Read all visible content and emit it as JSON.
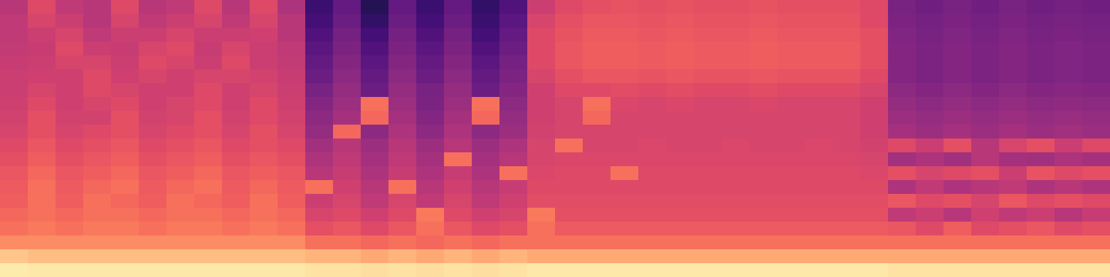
{
  "chart_data": {
    "type": "heatmap",
    "tick_labels": false,
    "color_range": [
      0,
      1
    ],
    "cells": [
      [
        0.5,
        0.6,
        0.52,
        0.5,
        0.6,
        0.5,
        0.52,
        0.6,
        0.5,
        0.6,
        0.48,
        0.2,
        0.3,
        0.15,
        0.3,
        0.2,
        0.3,
        0.18,
        0.25,
        0.55,
        0.6,
        0.62,
        0.63,
        0.62,
        0.63,
        0.62,
        0.62,
        0.63,
        0.62,
        0.62,
        0.62,
        0.6,
        0.35,
        0.33,
        0.35,
        0.33,
        0.35,
        0.33,
        0.34,
        0.33
      ],
      [
        0.52,
        0.58,
        0.55,
        0.5,
        0.58,
        0.52,
        0.55,
        0.58,
        0.52,
        0.58,
        0.5,
        0.22,
        0.32,
        0.18,
        0.32,
        0.22,
        0.32,
        0.2,
        0.28,
        0.58,
        0.62,
        0.64,
        0.64,
        0.63,
        0.64,
        0.63,
        0.63,
        0.64,
        0.63,
        0.63,
        0.63,
        0.6,
        0.36,
        0.34,
        0.36,
        0.34,
        0.36,
        0.34,
        0.35,
        0.34
      ],
      [
        0.52,
        0.55,
        0.58,
        0.52,
        0.55,
        0.55,
        0.58,
        0.55,
        0.55,
        0.56,
        0.5,
        0.25,
        0.34,
        0.22,
        0.34,
        0.25,
        0.34,
        0.22,
        0.3,
        0.6,
        0.63,
        0.65,
        0.65,
        0.64,
        0.65,
        0.64,
        0.64,
        0.65,
        0.64,
        0.64,
        0.64,
        0.62,
        0.37,
        0.35,
        0.37,
        0.35,
        0.37,
        0.35,
        0.36,
        0.35
      ],
      [
        0.53,
        0.54,
        0.6,
        0.55,
        0.54,
        0.58,
        0.6,
        0.54,
        0.58,
        0.55,
        0.52,
        0.28,
        0.36,
        0.25,
        0.36,
        0.28,
        0.36,
        0.25,
        0.32,
        0.6,
        0.64,
        0.66,
        0.66,
        0.65,
        0.66,
        0.65,
        0.65,
        0.66,
        0.65,
        0.65,
        0.65,
        0.62,
        0.38,
        0.36,
        0.38,
        0.36,
        0.38,
        0.36,
        0.37,
        0.36
      ],
      [
        0.54,
        0.55,
        0.58,
        0.58,
        0.55,
        0.6,
        0.58,
        0.55,
        0.6,
        0.55,
        0.53,
        0.3,
        0.38,
        0.28,
        0.38,
        0.3,
        0.38,
        0.28,
        0.34,
        0.6,
        0.64,
        0.66,
        0.66,
        0.65,
        0.66,
        0.65,
        0.65,
        0.66,
        0.65,
        0.65,
        0.65,
        0.62,
        0.38,
        0.36,
        0.38,
        0.36,
        0.38,
        0.36,
        0.37,
        0.36
      ],
      [
        0.55,
        0.56,
        0.56,
        0.6,
        0.56,
        0.58,
        0.56,
        0.58,
        0.58,
        0.57,
        0.54,
        0.32,
        0.4,
        0.3,
        0.4,
        0.32,
        0.4,
        0.3,
        0.36,
        0.58,
        0.62,
        0.64,
        0.64,
        0.63,
        0.64,
        0.63,
        0.63,
        0.64,
        0.63,
        0.63,
        0.63,
        0.6,
        0.38,
        0.36,
        0.38,
        0.36,
        0.38,
        0.36,
        0.37,
        0.36
      ],
      [
        0.55,
        0.58,
        0.56,
        0.6,
        0.58,
        0.56,
        0.56,
        0.6,
        0.56,
        0.58,
        0.55,
        0.35,
        0.42,
        0.32,
        0.42,
        0.35,
        0.42,
        0.32,
        0.38,
        0.56,
        0.6,
        0.6,
        0.61,
        0.6,
        0.61,
        0.6,
        0.6,
        0.61,
        0.6,
        0.6,
        0.6,
        0.58,
        0.4,
        0.38,
        0.4,
        0.38,
        0.4,
        0.38,
        0.39,
        0.38
      ],
      [
        0.56,
        0.6,
        0.56,
        0.58,
        0.6,
        0.56,
        0.58,
        0.6,
        0.56,
        0.6,
        0.56,
        0.38,
        0.44,
        0.7,
        0.44,
        0.36,
        0.44,
        0.7,
        0.4,
        0.56,
        0.58,
        0.7,
        0.59,
        0.58,
        0.59,
        0.58,
        0.58,
        0.59,
        0.58,
        0.58,
        0.58,
        0.56,
        0.42,
        0.4,
        0.42,
        0.4,
        0.42,
        0.4,
        0.41,
        0.4
      ],
      [
        0.57,
        0.62,
        0.57,
        0.57,
        0.62,
        0.57,
        0.58,
        0.62,
        0.57,
        0.6,
        0.57,
        0.4,
        0.46,
        0.68,
        0.46,
        0.38,
        0.46,
        0.68,
        0.42,
        0.56,
        0.58,
        0.68,
        0.58,
        0.58,
        0.58,
        0.58,
        0.58,
        0.58,
        0.58,
        0.58,
        0.58,
        0.56,
        0.44,
        0.42,
        0.44,
        0.42,
        0.44,
        0.42,
        0.43,
        0.42
      ],
      [
        0.58,
        0.62,
        0.58,
        0.6,
        0.62,
        0.58,
        0.6,
        0.62,
        0.58,
        0.62,
        0.58,
        0.42,
        0.68,
        0.4,
        0.48,
        0.4,
        0.48,
        0.4,
        0.44,
        0.57,
        0.58,
        0.58,
        0.58,
        0.58,
        0.58,
        0.58,
        0.58,
        0.58,
        0.58,
        0.58,
        0.58,
        0.56,
        0.46,
        0.44,
        0.46,
        0.44,
        0.46,
        0.44,
        0.45,
        0.44
      ],
      [
        0.6,
        0.64,
        0.6,
        0.62,
        0.64,
        0.6,
        0.62,
        0.64,
        0.6,
        0.62,
        0.6,
        0.45,
        0.5,
        0.44,
        0.5,
        0.44,
        0.5,
        0.44,
        0.48,
        0.58,
        0.7,
        0.58,
        0.58,
        0.59,
        0.58,
        0.58,
        0.59,
        0.58,
        0.58,
        0.59,
        0.58,
        0.57,
        0.6,
        0.55,
        0.62,
        0.5,
        0.58,
        0.62,
        0.55,
        0.6
      ],
      [
        0.62,
        0.66,
        0.62,
        0.64,
        0.66,
        0.62,
        0.64,
        0.66,
        0.62,
        0.64,
        0.62,
        0.48,
        0.52,
        0.46,
        0.52,
        0.46,
        0.7,
        0.46,
        0.5,
        0.58,
        0.59,
        0.59,
        0.59,
        0.59,
        0.59,
        0.59,
        0.59,
        0.59,
        0.59,
        0.59,
        0.59,
        0.58,
        0.45,
        0.48,
        0.45,
        0.5,
        0.46,
        0.45,
        0.48,
        0.46
      ],
      [
        0.64,
        0.68,
        0.64,
        0.66,
        0.68,
        0.64,
        0.66,
        0.68,
        0.64,
        0.66,
        0.64,
        0.5,
        0.54,
        0.48,
        0.54,
        0.48,
        0.54,
        0.48,
        0.7,
        0.59,
        0.6,
        0.6,
        0.7,
        0.6,
        0.6,
        0.6,
        0.6,
        0.6,
        0.6,
        0.6,
        0.6,
        0.59,
        0.62,
        0.58,
        0.6,
        0.62,
        0.55,
        0.63,
        0.6,
        0.62
      ],
      [
        0.65,
        0.7,
        0.65,
        0.68,
        0.7,
        0.65,
        0.68,
        0.7,
        0.65,
        0.68,
        0.65,
        0.7,
        0.56,
        0.5,
        0.7,
        0.5,
        0.56,
        0.5,
        0.54,
        0.6,
        0.6,
        0.6,
        0.6,
        0.6,
        0.6,
        0.6,
        0.6,
        0.6,
        0.6,
        0.6,
        0.6,
        0.6,
        0.48,
        0.52,
        0.48,
        0.5,
        0.52,
        0.48,
        0.5,
        0.48
      ],
      [
        0.66,
        0.7,
        0.66,
        0.7,
        0.68,
        0.66,
        0.7,
        0.68,
        0.66,
        0.7,
        0.66,
        0.55,
        0.58,
        0.52,
        0.58,
        0.52,
        0.58,
        0.52,
        0.56,
        0.61,
        0.61,
        0.61,
        0.61,
        0.61,
        0.61,
        0.61,
        0.61,
        0.61,
        0.61,
        0.61,
        0.61,
        0.61,
        0.64,
        0.6,
        0.62,
        0.58,
        0.64,
        0.6,
        0.62,
        0.6
      ],
      [
        0.68,
        0.7,
        0.68,
        0.7,
        0.7,
        0.68,
        0.7,
        0.7,
        0.68,
        0.7,
        0.68,
        0.58,
        0.6,
        0.56,
        0.6,
        0.72,
        0.6,
        0.56,
        0.58,
        0.72,
        0.62,
        0.62,
        0.62,
        0.62,
        0.62,
        0.62,
        0.62,
        0.62,
        0.62,
        0.62,
        0.62,
        0.62,
        0.52,
        0.55,
        0.5,
        0.56,
        0.52,
        0.55,
        0.5,
        0.54
      ],
      [
        0.7,
        0.72,
        0.7,
        0.72,
        0.72,
        0.7,
        0.72,
        0.72,
        0.7,
        0.72,
        0.7,
        0.62,
        0.64,
        0.6,
        0.64,
        0.7,
        0.64,
        0.6,
        0.62,
        0.7,
        0.65,
        0.65,
        0.65,
        0.65,
        0.65,
        0.65,
        0.65,
        0.65,
        0.65,
        0.65,
        0.65,
        0.65,
        0.64,
        0.6,
        0.66,
        0.6,
        0.62,
        0.64,
        0.6,
        0.62
      ],
      [
        0.76,
        0.76,
        0.76,
        0.76,
        0.76,
        0.76,
        0.76,
        0.76,
        0.76,
        0.76,
        0.76,
        0.7,
        0.7,
        0.68,
        0.7,
        0.68,
        0.7,
        0.68,
        0.7,
        0.7,
        0.7,
        0.7,
        0.7,
        0.7,
        0.7,
        0.7,
        0.7,
        0.7,
        0.7,
        0.7,
        0.7,
        0.7,
        0.7,
        0.7,
        0.7,
        0.7,
        0.7,
        0.7,
        0.7,
        0.7
      ],
      [
        0.88,
        0.86,
        0.86,
        0.86,
        0.86,
        0.86,
        0.86,
        0.86,
        0.86,
        0.86,
        0.86,
        0.84,
        0.84,
        0.82,
        0.84,
        0.82,
        0.84,
        0.82,
        0.84,
        0.82,
        0.82,
        0.82,
        0.82,
        0.82,
        0.82,
        0.82,
        0.82,
        0.82,
        0.82,
        0.82,
        0.82,
        0.82,
        0.82,
        0.82,
        0.82,
        0.82,
        0.82,
        0.82,
        0.82,
        0.82
      ],
      [
        0.96,
        0.95,
        0.95,
        0.95,
        0.95,
        0.95,
        0.95,
        0.95,
        0.95,
        0.95,
        0.95,
        0.94,
        0.94,
        0.93,
        0.94,
        0.93,
        0.94,
        0.93,
        0.94,
        0.95,
        0.95,
        0.95,
        0.95,
        0.95,
        0.95,
        0.95,
        0.95,
        0.95,
        0.95,
        0.95,
        0.95,
        0.95,
        0.94,
        0.94,
        0.94,
        0.94,
        0.94,
        0.94,
        0.94,
        0.94
      ]
    ]
  }
}
